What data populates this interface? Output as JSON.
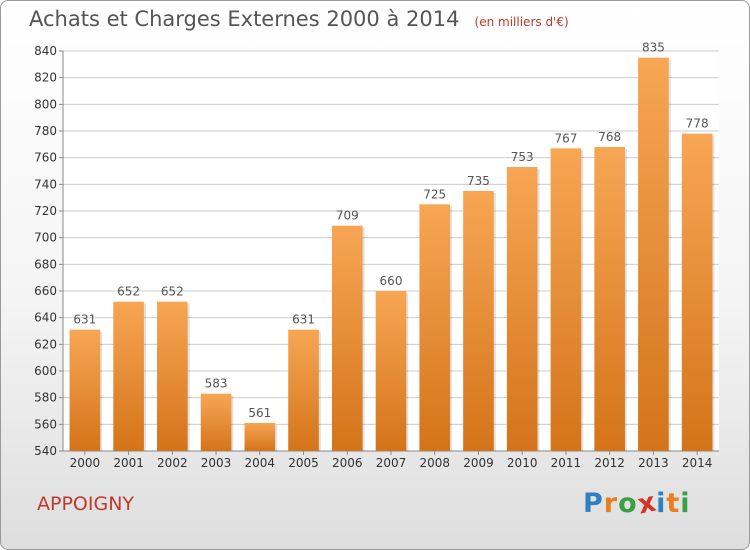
{
  "title": "Achats et Charges Externes 2000 à 2014",
  "subtitle": "(en milliers d'€)",
  "commune": "APPOIGNY",
  "brand": {
    "letters": [
      "P",
      "r",
      "o",
      "x",
      "i",
      "t",
      "i"
    ],
    "colors": [
      "#2f7fc1",
      "#e87e1e",
      "#3aa043",
      "#d6312b",
      "#2f7fc1",
      "#e87e1e",
      "#3aa043"
    ]
  },
  "colors": {
    "bar_light": "#f7a654",
    "bar_dark": "#d4741a",
    "grid": "#cccccc",
    "axis_text": "#333333",
    "label_text": "#555555"
  },
  "chart_data": {
    "type": "bar",
    "title": "Achats et Charges Externes 2000 à 2014",
    "subtitle": "(en milliers d'€)",
    "xlabel": "",
    "ylabel": "",
    "categories": [
      "2000",
      "2001",
      "2002",
      "2003",
      "2004",
      "2005",
      "2006",
      "2007",
      "2008",
      "2009",
      "2010",
      "2011",
      "2012",
      "2013",
      "2014"
    ],
    "values": [
      631,
      652,
      652,
      583,
      561,
      631,
      709,
      660,
      725,
      735,
      753,
      767,
      768,
      835,
      778
    ],
    "ylim": [
      540,
      840
    ],
    "yticks": [
      540,
      560,
      580,
      600,
      620,
      640,
      660,
      680,
      700,
      720,
      740,
      760,
      780,
      800,
      820,
      840
    ],
    "grid": true,
    "legend": "none"
  }
}
